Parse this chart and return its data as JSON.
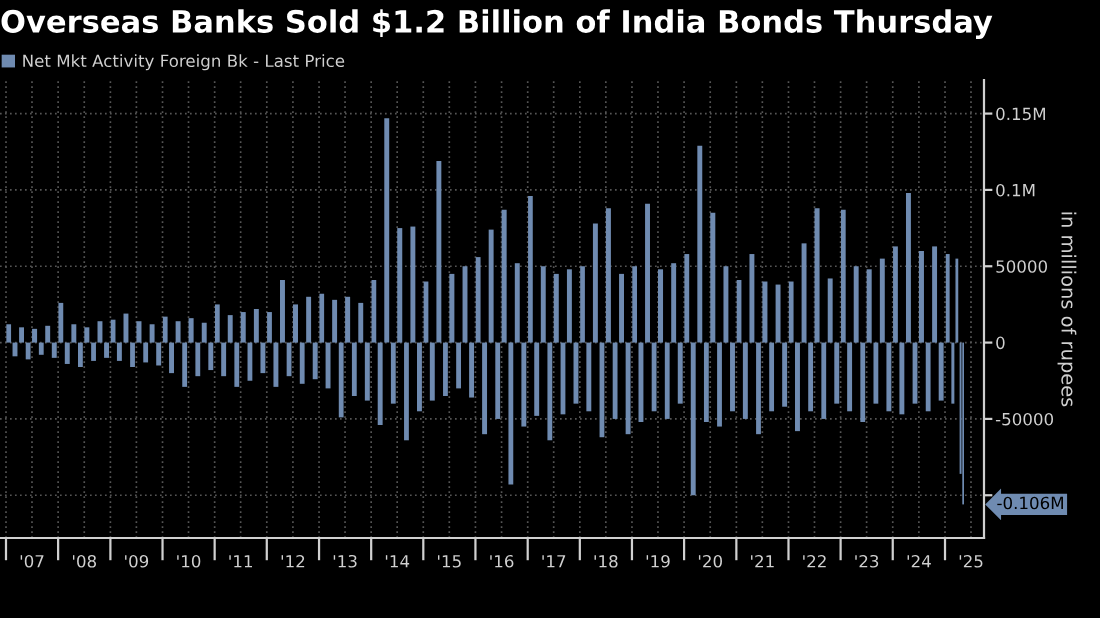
{
  "chart_data": {
    "type": "bar",
    "title": "Overseas Banks Sold $1.2 Billion of India Bonds Thursday",
    "y2label": "in millions of rupees",
    "legend": "top left",
    "grid": true,
    "x": [
      "2007-01-20",
      "2007-03-05",
      "2007-04-20",
      "2007-06-05",
      "2007-07-20",
      "2007-09-05",
      "2007-10-20",
      "2007-12-05",
      "2008-01-20",
      "2008-03-05",
      "2008-04-20",
      "2008-06-05",
      "2008-07-20",
      "2008-09-05",
      "2008-10-20",
      "2008-12-05",
      "2009-01-20",
      "2009-03-05",
      "2009-04-20",
      "2009-06-05",
      "2009-07-20",
      "2009-09-05",
      "2009-10-20",
      "2009-12-05",
      "2010-01-20",
      "2010-03-05",
      "2010-04-20",
      "2010-06-05",
      "2010-07-20",
      "2010-09-05",
      "2010-10-20",
      "2010-12-05",
      "2011-01-20",
      "2011-03-05",
      "2011-04-20",
      "2011-06-05",
      "2011-07-20",
      "2011-09-05",
      "2011-10-20",
      "2011-12-05",
      "2012-01-20",
      "2012-03-05",
      "2012-04-20",
      "2012-06-05",
      "2012-07-20",
      "2012-09-05",
      "2012-10-20",
      "2012-12-05",
      "2013-01-20",
      "2013-03-05",
      "2013-04-20",
      "2013-06-05",
      "2013-07-20",
      "2013-09-05",
      "2013-10-20",
      "2013-12-05",
      "2014-01-20",
      "2014-03-05",
      "2014-04-20",
      "2014-06-05",
      "2014-07-20",
      "2014-09-05",
      "2014-10-20",
      "2014-12-05",
      "2015-01-20",
      "2015-03-05",
      "2015-04-20",
      "2015-06-05",
      "2015-07-20",
      "2015-09-05",
      "2015-10-20",
      "2015-12-05",
      "2016-01-20",
      "2016-03-05",
      "2016-04-20",
      "2016-06-05",
      "2016-07-20",
      "2016-09-05",
      "2016-10-20",
      "2016-12-05",
      "2017-01-20",
      "2017-03-05",
      "2017-04-20",
      "2017-06-05",
      "2017-07-20",
      "2017-09-05",
      "2017-10-20",
      "2017-12-05",
      "2018-01-20",
      "2018-03-05",
      "2018-04-20",
      "2018-06-05",
      "2018-07-20",
      "2018-09-05",
      "2018-10-20",
      "2018-12-05",
      "2019-01-20",
      "2019-03-05",
      "2019-04-20",
      "2019-06-05",
      "2019-07-20",
      "2019-09-05",
      "2019-10-20",
      "2019-12-05",
      "2020-01-20",
      "2020-03-05",
      "2020-04-20",
      "2020-06-05",
      "2020-07-20",
      "2020-09-05",
      "2020-10-20",
      "2020-12-05",
      "2021-01-20",
      "2021-03-05",
      "2021-04-20",
      "2021-06-05",
      "2021-07-20",
      "2021-09-05",
      "2021-10-20",
      "2021-12-05",
      "2022-01-20",
      "2022-03-05",
      "2022-04-20",
      "2022-06-05",
      "2022-07-20",
      "2022-09-05",
      "2022-10-20",
      "2022-12-05",
      "2023-01-20",
      "2023-03-05",
      "2023-04-20",
      "2023-06-05",
      "2023-07-20",
      "2023-09-05",
      "2023-10-20",
      "2023-12-05",
      "2024-01-20",
      "2024-03-05",
      "2024-04-20",
      "2024-06-05",
      "2024-07-20",
      "2024-09-05",
      "2024-10-20",
      "2024-12-05",
      "2025-01-20",
      "2025-02-25",
      "2025-03-25",
      "2025-04-20",
      "2025-05-08"
    ],
    "series": [
      {
        "name": "Net Mkt Activity Foreign Bk - Last Price",
        "color": "#6f8bb1",
        "values": [
          12000,
          -9000,
          10000,
          -11000,
          9000,
          -8000,
          11000,
          -10000,
          26000,
          -14000,
          12000,
          -16000,
          10000,
          -12000,
          14000,
          -10000,
          15000,
          -12000,
          19000,
          -16000,
          14000,
          -13000,
          12000,
          -15000,
          17000,
          -20000,
          14000,
          -29000,
          16000,
          -22000,
          13000,
          -18000,
          25000,
          -22000,
          18000,
          -29000,
          20000,
          -25000,
          22000,
          -20000,
          20000,
          -29000,
          41000,
          -22000,
          25000,
          -27000,
          30000,
          -24000,
          32000,
          -30000,
          28000,
          -49000,
          30000,
          -35000,
          26000,
          -38000,
          41000,
          -54000,
          147000,
          -40000,
          75000,
          -64000,
          76000,
          -45000,
          40000,
          -38000,
          119000,
          -35000,
          45000,
          -30000,
          50000,
          -36000,
          56000,
          -60000,
          74000,
          -50000,
          87000,
          -93000,
          52000,
          -55000,
          96000,
          -48000,
          50000,
          -64000,
          45000,
          -47000,
          48000,
          -40000,
          50000,
          -45000,
          78000,
          -62000,
          88000,
          -50000,
          45000,
          -60000,
          50000,
          -52000,
          91000,
          -45000,
          48000,
          -50000,
          52000,
          -40000,
          58000,
          -100000,
          129000,
          -52000,
          85000,
          -55000,
          50000,
          -45000,
          41000,
          -50000,
          58000,
          -60000,
          40000,
          -45000,
          38000,
          -42000,
          40000,
          -58000,
          65000,
          -45000,
          88000,
          -50000,
          42000,
          -40000,
          87000,
          -45000,
          50000,
          -52000,
          48000,
          -40000,
          55000,
          -45000,
          63000,
          -47000,
          98000,
          -40000,
          60000,
          -45000,
          63000,
          -38000,
          58000,
          -40000,
          55000,
          -86000,
          -106000
        ]
      }
    ],
    "annotations": [
      {
        "text": "-0.106M",
        "x": "2025-05-08",
        "y": -106000
      }
    ],
    "xlim": [
      "2006-11-20",
      "2025-10-01"
    ],
    "xticks": [
      {
        "value": "2007-01-01",
        "label": null
      },
      {
        "value": "2007-07-02",
        "label": "'07"
      },
      {
        "value": "2008-01-01",
        "label": null
      },
      {
        "value": "2008-07-02",
        "label": "'08"
      },
      {
        "value": "2009-01-01",
        "label": null
      },
      {
        "value": "2009-07-02",
        "label": "'09"
      },
      {
        "value": "2010-01-01",
        "label": null
      },
      {
        "value": "2010-07-02",
        "label": "'10"
      },
      {
        "value": "2011-01-01",
        "label": null
      },
      {
        "value": "2011-07-02",
        "label": "'11"
      },
      {
        "value": "2012-01-01",
        "label": null
      },
      {
        "value": "2012-07-02",
        "label": "'12"
      },
      {
        "value": "2013-01-01",
        "label": null
      },
      {
        "value": "2013-07-02",
        "label": "'13"
      },
      {
        "value": "2014-01-01",
        "label": null
      },
      {
        "value": "2014-07-02",
        "label": "'14"
      },
      {
        "value": "2015-01-01",
        "label": null
      },
      {
        "value": "2015-07-02",
        "label": "'15"
      },
      {
        "value": "2016-01-01",
        "label": null
      },
      {
        "value": "2016-07-02",
        "label": "'16"
      },
      {
        "value": "2017-01-01",
        "label": null
      },
      {
        "value": "2017-07-02",
        "label": "'17"
      },
      {
        "value": "2018-01-01",
        "label": null
      },
      {
        "value": "2018-07-02",
        "label": "'18"
      },
      {
        "value": "2019-01-01",
        "label": null
      },
      {
        "value": "2019-07-02",
        "label": "'19"
      },
      {
        "value": "2020-01-01",
        "label": null
      },
      {
        "value": "2020-07-02",
        "label": "'20"
      },
      {
        "value": "2021-01-01",
        "label": null
      },
      {
        "value": "2021-07-02",
        "label": "'21"
      },
      {
        "value": "2022-01-01",
        "label": null
      },
      {
        "value": "2022-07-02",
        "label": "'22"
      },
      {
        "value": "2023-01-01",
        "label": null
      },
      {
        "value": "2023-07-02",
        "label": "'23"
      },
      {
        "value": "2024-01-01",
        "label": null
      },
      {
        "value": "2024-07-02",
        "label": "'24"
      },
      {
        "value": "2025-01-01",
        "label": null
      },
      {
        "value": "2025-07-02",
        "label": "'25"
      }
    ],
    "ylim": [
      -128000,
      172000
    ],
    "yticks": [
      {
        "value": -100000,
        "label": null
      },
      -50000,
      0,
      50000,
      {
        "value": 100000,
        "label": "0.1M"
      },
      {
        "value": 150000,
        "label": "0.15M"
      }
    ]
  }
}
